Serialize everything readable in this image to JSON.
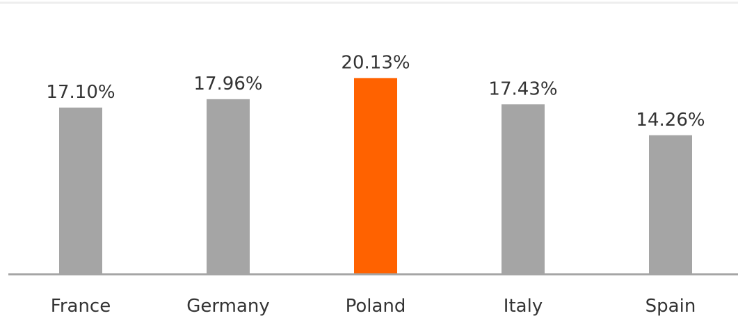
{
  "chart_data": {
    "type": "bar",
    "categories": [
      "France",
      "Germany",
      "Poland",
      "Italy",
      "Spain"
    ],
    "values": [
      17.1,
      17.96,
      20.13,
      17.43,
      14.26
    ],
    "value_labels": [
      "17.10%",
      "17.96%",
      "20.13%",
      "17.43%",
      "14.26%"
    ],
    "colors": [
      "#a5a5a5",
      "#a5a5a5",
      "#ff6200",
      "#a5a5a5",
      "#a5a5a5"
    ],
    "ylim": [
      0,
      25
    ]
  }
}
